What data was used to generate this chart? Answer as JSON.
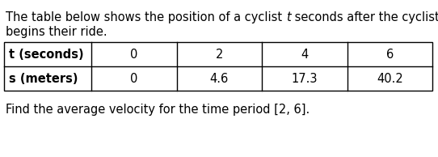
{
  "intro_pre": "The table below shows the position of a cyclist ",
  "intro_italic": "t",
  "intro_post": " seconds after the cyclist",
  "intro_line2": "begins their ride.",
  "row1_header": "t (seconds)",
  "row2_header": "s (meters)",
  "col_values_t": [
    "0",
    "2",
    "4",
    "6"
  ],
  "col_values_s": [
    "0",
    "4.6",
    "17.3",
    "40.2"
  ],
  "footer": "Find the average velocity for the time period [2, 6].",
  "bg_color": "#ffffff",
  "table_border_color": "#000000",
  "text_color": "#000000",
  "font_size_body": 10.5,
  "font_size_table": 10.5
}
